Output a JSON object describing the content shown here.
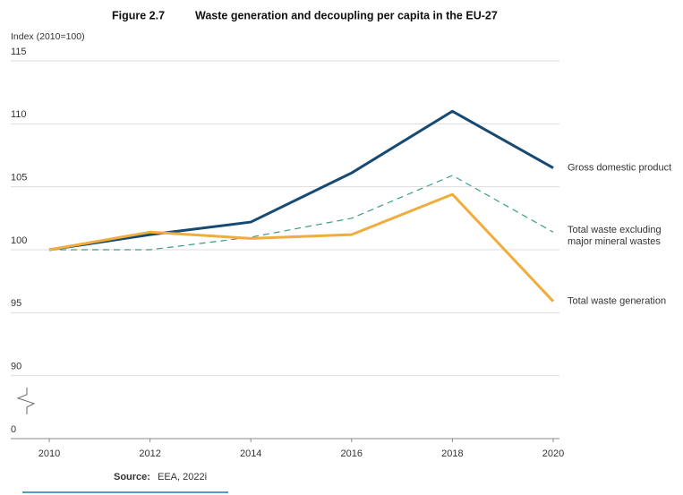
{
  "chart_data": {
    "type": "line",
    "figure_label": "Figure 2.7",
    "title": "Waste generation and decoupling per capita in the EU-27",
    "y_label": "Index (2010=100)",
    "x": [
      2010,
      2012,
      2014,
      2016,
      2018,
      2020
    ],
    "xlim": [
      2010,
      2020
    ],
    "xticks": [
      2010,
      2012,
      2014,
      2016,
      2018,
      2020
    ],
    "ylim": [
      0,
      115
    ],
    "yticks": [
      0,
      90,
      95,
      100,
      105,
      110,
      115
    ],
    "axis_break": [
      0,
      90
    ],
    "grid": true,
    "series": [
      {
        "name": "Gross domestic product",
        "color": "#174a73",
        "dash": false,
        "values": [
          100,
          101.2,
          102.2,
          106.1,
          111,
          106.5
        ]
      },
      {
        "name": "Total waste excluding major mineral wastes",
        "color": "#3a9c8a",
        "dash": true,
        "values": [
          100,
          100,
          101,
          102.5,
          105.9,
          101.4
        ]
      },
      {
        "name": "Total waste generation",
        "color": "#f0ad3c",
        "dash": false,
        "values": [
          100,
          101.4,
          100.9,
          101.2,
          104.4,
          95.9
        ]
      }
    ],
    "source_label": "Source:",
    "source": "EEA, 2022i"
  }
}
